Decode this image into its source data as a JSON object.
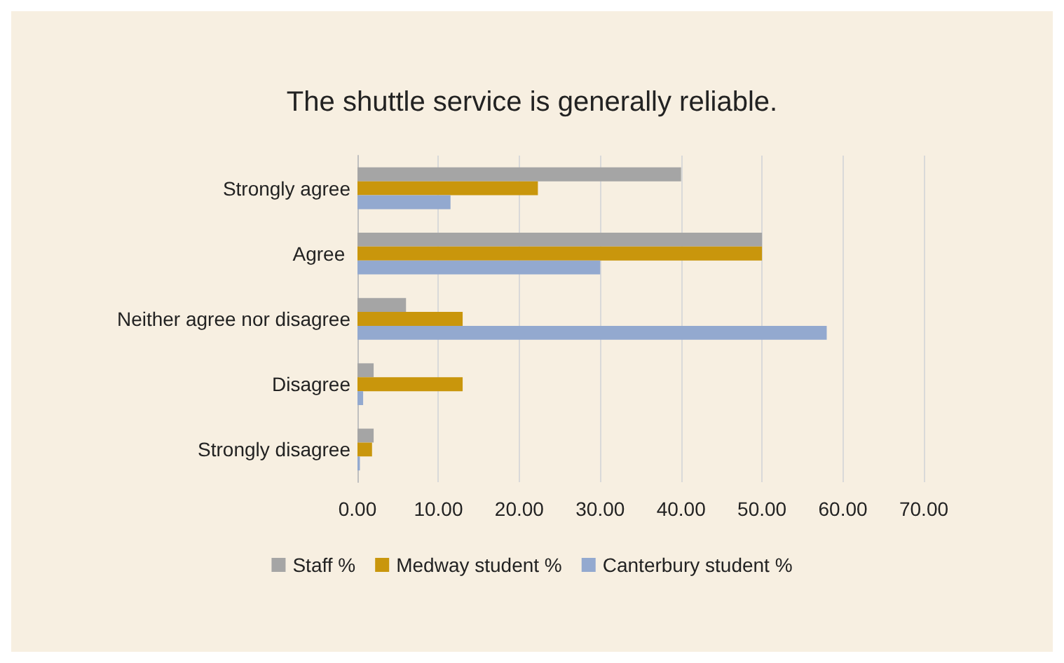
{
  "chart_data": {
    "type": "bar",
    "orientation": "horizontal",
    "title": "The shuttle service is generally reliable.",
    "categories": [
      "Strongly agree",
      "Agree ",
      "Neither agree nor disagree",
      "Disagree",
      "Strongly disagree"
    ],
    "series": [
      {
        "name": "Staff %",
        "color": "#a5a5a5",
        "values": [
          40,
          50,
          6,
          2,
          2
        ]
      },
      {
        "name": "Medway student %",
        "color": "#c9960c",
        "values": [
          22.3,
          50,
          13,
          13,
          1.8
        ]
      },
      {
        "name": "Canterbury student %",
        "color": "#93a9cf",
        "values": [
          11.5,
          30,
          58,
          0.7,
          0.3
        ]
      }
    ],
    "xlim": [
      0,
      70
    ],
    "xticks": [
      {
        "value": 0,
        "label": "0.00"
      },
      {
        "value": 10,
        "label": "10.00"
      },
      {
        "value": 20,
        "label": "20.00"
      },
      {
        "value": 30,
        "label": "30.00"
      },
      {
        "value": 40,
        "label": "40.00"
      },
      {
        "value": 50,
        "label": "50.00"
      },
      {
        "value": 60,
        "label": "60.00"
      },
      {
        "value": 70,
        "label": "70.00"
      }
    ],
    "grid": "x",
    "legend": "bottom"
  }
}
